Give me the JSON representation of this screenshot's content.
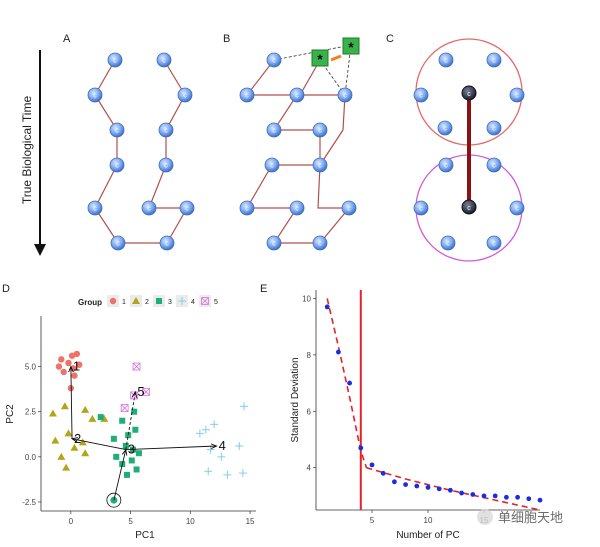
{
  "panels": {
    "A": {
      "label": "A"
    },
    "B": {
      "label": "B"
    },
    "C": {
      "label": "C"
    },
    "D": {
      "label": "D"
    },
    "E": {
      "label": "E"
    }
  },
  "time_axis_label": "True Biological Time",
  "cell_glyph": "c",
  "marker_star": "*",
  "watermark": "单细胞天地",
  "colors": {
    "cell_fill": "#79a8f0",
    "cell_stroke": "#3f6fc4",
    "edge": "#b0504d",
    "star_fill": "#3ab24a",
    "circle_red": "#e36a6a",
    "circle_pink": "#d65ad6",
    "grp1": "#ee7267",
    "grp2": "#b3a41a",
    "grp3": "#1fae78",
    "grp4": "#7fd0ea",
    "grp5": "#d874d8",
    "pc_dot": "#1a2ddf",
    "fit_line": "#e2242a"
  },
  "chart_data": [
    {
      "type": "scatter",
      "panel": "D",
      "xlabel": "PC1",
      "ylabel": "PC2",
      "xlim": [
        -2.5,
        15.5
      ],
      "ylim": [
        -3.0,
        7.8
      ],
      "x_ticks": [
        0,
        5,
        10,
        15
      ],
      "y_ticks": [
        -2.5,
        0.0,
        2.5,
        5.0
      ],
      "y_tick_labels": [
        "-2.5",
        "0.0",
        "2.5",
        "5.0"
      ],
      "legend": {
        "title": "Group",
        "position": "top",
        "entries": [
          "1",
          "2",
          "3",
          "4",
          "5"
        ]
      },
      "series": [
        {
          "name": "1",
          "points": [
            [
              0.5,
              5.7
            ],
            [
              -0.8,
              5.4
            ],
            [
              -1.0,
              5.0
            ],
            [
              -0.2,
              5.2
            ],
            [
              0.2,
              4.9
            ],
            [
              0.7,
              5.1
            ],
            [
              -0.6,
              4.7
            ],
            [
              0.3,
              4.5
            ],
            [
              0.0,
              3.8
            ],
            [
              0.1,
              5.6
            ]
          ]
        },
        {
          "name": "2",
          "points": [
            [
              -1.5,
              2.4
            ],
            [
              -0.5,
              2.8
            ],
            [
              1.2,
              2.6
            ],
            [
              1.8,
              2.1
            ],
            [
              2.8,
              2.1
            ],
            [
              -1.3,
              0.9
            ],
            [
              -0.2,
              1.3
            ],
            [
              1.0,
              0.8
            ],
            [
              -0.8,
              0.0
            ],
            [
              -0.4,
              -0.6
            ],
            [
              1.2,
              0.2
            ],
            [
              0.3,
              0.5
            ]
          ]
        },
        {
          "name": "3",
          "points": [
            [
              2.5,
              2.2
            ],
            [
              4.3,
              2.0
            ],
            [
              5.3,
              2.5
            ],
            [
              5.4,
              1.5
            ],
            [
              3.6,
              1.0
            ],
            [
              4.8,
              1.2
            ],
            [
              4.6,
              0.6
            ],
            [
              5.2,
              0.4
            ],
            [
              5.7,
              0.2
            ],
            [
              3.8,
              0.0
            ],
            [
              4.3,
              -0.4
            ],
            [
              5.1,
              -0.2
            ],
            [
              5.5,
              -0.7
            ],
            [
              4.7,
              -1.0
            ]
          ]
        },
        {
          "name": "4",
          "points": [
            [
              10.8,
              1.3
            ],
            [
              11.3,
              1.5
            ],
            [
              12.0,
              1.8
            ],
            [
              14.5,
              2.8
            ],
            [
              11.7,
              0.4
            ],
            [
              12.6,
              0.0
            ],
            [
              14.1,
              0.6
            ],
            [
              11.5,
              -0.8
            ],
            [
              13.1,
              -1.0
            ],
            [
              14.4,
              -0.9
            ]
          ]
        },
        {
          "name": "5",
          "points": [
            [
              5.5,
              5.0
            ],
            [
              5.3,
              3.4
            ],
            [
              6.3,
              3.6
            ],
            [
              4.5,
              2.7
            ]
          ]
        }
      ],
      "centroids": [
        {
          "label": "1",
          "x": 0.0,
          "y": 5.0
        },
        {
          "label": "2",
          "x": 0.1,
          "y": 1.0
        },
        {
          "label": "3",
          "x": 4.6,
          "y": 0.4
        },
        {
          "label": "4",
          "x": 12.2,
          "y": 0.6
        },
        {
          "label": "5",
          "x": 5.4,
          "y": 3.6
        }
      ],
      "root_point": {
        "x": 3.6,
        "y": -2.4
      }
    },
    {
      "type": "scatter",
      "panel": "E",
      "xlabel": "Number of PC",
      "ylabel": "Standard Deviation",
      "xlim": [
        0,
        20
      ],
      "ylim": [
        2.5,
        10.3
      ],
      "x_ticks": [
        5,
        10,
        15
      ],
      "y_ticks": [
        4,
        6,
        8,
        10
      ],
      "x": [
        1,
        2,
        3,
        4,
        5,
        6,
        7,
        8,
        9,
        10,
        11,
        12,
        13,
        14,
        15,
        16,
        17,
        18,
        19,
        20
      ],
      "values": [
        9.7,
        8.1,
        7.0,
        4.7,
        4.1,
        3.8,
        3.5,
        3.4,
        3.35,
        3.3,
        3.25,
        3.2,
        3.1,
        3.05,
        3.0,
        3.0,
        2.95,
        2.95,
        2.9,
        2.85
      ],
      "cutoff_pc": 4,
      "fit_left": [
        [
          1,
          10.0
        ],
        [
          2,
          8.3
        ],
        [
          3,
          6.5
        ],
        [
          4,
          4.6
        ],
        [
          4.5,
          4.0
        ]
      ],
      "fit_right": [
        [
          4.5,
          4.0
        ],
        [
          8,
          3.6
        ],
        [
          12,
          3.2
        ],
        [
          16,
          2.85
        ],
        [
          20,
          2.5
        ]
      ]
    }
  ]
}
